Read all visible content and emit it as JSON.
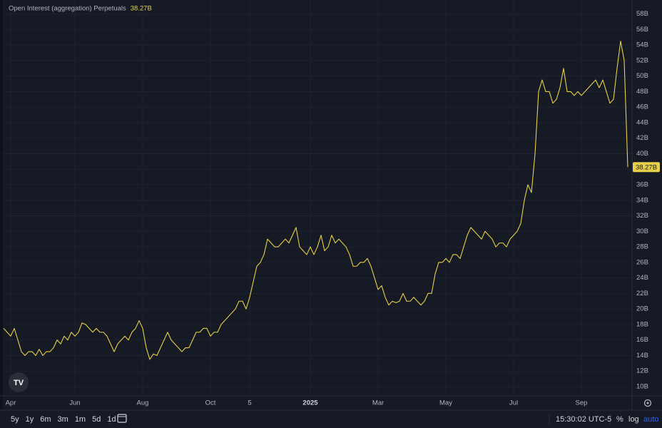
{
  "chart_data": {
    "type": "line",
    "title": "Open Interest (aggregation) Perpetuals",
    "legend_value_label": "38.27B",
    "categories": [
      null,
      null,
      "Apr",
      null,
      null,
      null,
      null,
      null,
      null,
      null,
      null,
      null,
      null,
      null,
      null,
      null,
      null,
      null,
      null,
      null,
      "Jun",
      null,
      null,
      null,
      null,
      null,
      null,
      null,
      null,
      null,
      null,
      null,
      null,
      null,
      null,
      null,
      null,
      null,
      null,
      "Aug",
      null,
      null,
      null,
      null,
      null,
      null,
      null,
      null,
      null,
      null,
      null,
      null,
      null,
      null,
      null,
      null,
      null,
      null,
      "Oct",
      null,
      null,
      null,
      null,
      null,
      null,
      null,
      null,
      null,
      null,
      "5",
      null,
      null,
      null,
      null,
      null,
      null,
      null,
      null,
      null,
      null,
      null,
      null,
      null,
      null,
      null,
      null,
      "2025",
      null,
      null,
      null,
      null,
      null,
      null,
      null,
      null,
      null,
      null,
      null,
      null,
      null,
      null,
      null,
      null,
      null,
      null,
      "Mar",
      null,
      null,
      null,
      null,
      null,
      null,
      null,
      null,
      null,
      null,
      null,
      null,
      null,
      null,
      null,
      null,
      null,
      null,
      "May",
      null,
      null,
      null,
      null,
      null,
      null,
      null,
      null,
      null,
      null,
      null,
      null,
      null,
      null,
      null,
      null,
      null,
      null,
      "Jul",
      null,
      null,
      null,
      null,
      null,
      null,
      null,
      null,
      null,
      null,
      null,
      null,
      null,
      null,
      null,
      null,
      null,
      null,
      "Sep",
      null,
      null,
      null,
      null,
      null,
      null,
      null,
      null,
      null,
      null,
      null,
      null,
      null
    ],
    "series": [
      {
        "name": "Open Interest (aggregation) Perpetuals",
        "color": "#e6d04a",
        "values": [
          17.5,
          17,
          16.5,
          17.5,
          16,
          14.5,
          14,
          14.5,
          14.5,
          14,
          14.8,
          14,
          14.5,
          14.5,
          15,
          16,
          15.5,
          16.5,
          16,
          17,
          16.5,
          17,
          18.2,
          18,
          17.5,
          17,
          17.5,
          17,
          17,
          16.5,
          15.5,
          14.5,
          15.5,
          16,
          16.5,
          16,
          17,
          17.5,
          18.5,
          17.5,
          15,
          13.5,
          14.2,
          14,
          15,
          16,
          17,
          16,
          15.5,
          15,
          14.5,
          15,
          15,
          16,
          17,
          17,
          17.5,
          17.5,
          16.5,
          17,
          17,
          18,
          18.5,
          19,
          19.5,
          20,
          21,
          21,
          20,
          21.5,
          23.5,
          25.5,
          26,
          27,
          29,
          28.5,
          28,
          28,
          28.5,
          29,
          28.5,
          29.5,
          30.5,
          28,
          27.5,
          27,
          28,
          27,
          28,
          29.5,
          27.5,
          28,
          29.5,
          28.5,
          29,
          28.5,
          28,
          27,
          25.5,
          25.5,
          26,
          26,
          26.5,
          25.5,
          24,
          22.5,
          23,
          21.5,
          20.5,
          21,
          20.8,
          21,
          22,
          21,
          21,
          21.5,
          21,
          20.5,
          21,
          22,
          22,
          24.5,
          26,
          26,
          26.5,
          26,
          27,
          27,
          26.5,
          28,
          29.5,
          30.5,
          30,
          29.5,
          29,
          30,
          29.5,
          29,
          28,
          28.5,
          28.5,
          28,
          29,
          29.5,
          30,
          31,
          34,
          36,
          35,
          40,
          48,
          49.5,
          48,
          48,
          46.5,
          47,
          48.5,
          51,
          48,
          48,
          47.5,
          48,
          47.5,
          48,
          48.5,
          49,
          49.5,
          48.5,
          49.5,
          48,
          46.5,
          47,
          51,
          54.5,
          52,
          38.27
        ]
      }
    ],
    "ylim": [
      8.8,
      59.8
    ],
    "yticks": [
      {
        "value": 10,
        "label": "10B"
      },
      {
        "value": 12,
        "label": "12B"
      },
      {
        "value": 14,
        "label": "14B"
      },
      {
        "value": 16,
        "label": "16B"
      },
      {
        "value": 18,
        "label": "18B"
      },
      {
        "value": 20,
        "label": "20B"
      },
      {
        "value": 22,
        "label": "22B"
      },
      {
        "value": 24,
        "label": "24B"
      },
      {
        "value": 26,
        "label": "26B"
      },
      {
        "value": 28,
        "label": "28B"
      },
      {
        "value": 30,
        "label": "30B"
      },
      {
        "value": 32,
        "label": "32B"
      },
      {
        "value": 34,
        "label": "34B"
      },
      {
        "value": 36,
        "label": "36B"
      },
      {
        "value": 38,
        "label": "38B"
      },
      {
        "value": 40,
        "label": "40B"
      },
      {
        "value": 42,
        "label": "42B"
      },
      {
        "value": 44,
        "label": "44B"
      },
      {
        "value": 46,
        "label": "46B"
      },
      {
        "value": 48,
        "label": "48B"
      },
      {
        "value": 50,
        "label": "50B"
      },
      {
        "value": 52,
        "label": "52B"
      },
      {
        "value": 54,
        "label": "54B"
      },
      {
        "value": 56,
        "label": "56B"
      },
      {
        "value": 58,
        "label": "58B"
      }
    ],
    "grid": true
  },
  "toolbar": {
    "ranges": [
      "5y",
      "1y",
      "6m",
      "3m",
      "1m",
      "5d",
      "1d"
    ],
    "clock": "15:30:02 UTC-5",
    "percent": "%",
    "log": "log",
    "auto": "auto"
  }
}
